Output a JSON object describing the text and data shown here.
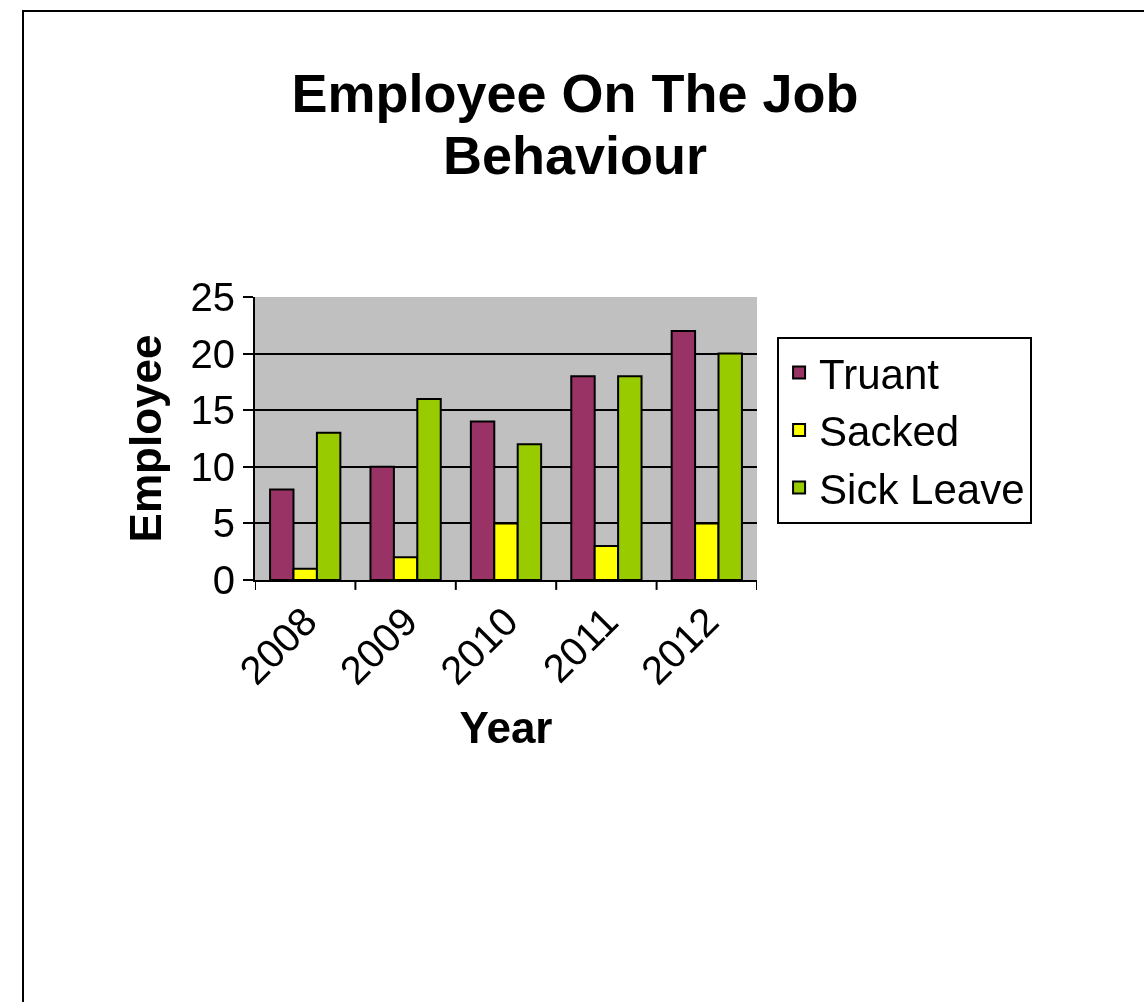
{
  "chart_data": {
    "type": "bar",
    "title": "Employee On The Job Behaviour",
    "xlabel": "Year",
    "ylabel": "Employee",
    "categories": [
      "2008",
      "2009",
      "2010",
      "2011",
      "2012"
    ],
    "series": [
      {
        "name": "Truant",
        "color": "#993366",
        "values": [
          8,
          10,
          14,
          18,
          22
        ]
      },
      {
        "name": "Sacked",
        "color": "#ffff00",
        "values": [
          1,
          2,
          5,
          3,
          5
        ]
      },
      {
        "name": "Sick Leave",
        "color": "#99cc00",
        "values": [
          13,
          16,
          12,
          18,
          20
        ]
      }
    ],
    "ylim": [
      0,
      25
    ],
    "yticks": [
      0,
      5,
      10,
      15,
      20,
      25
    ],
    "grid": "y",
    "legend": "right"
  }
}
